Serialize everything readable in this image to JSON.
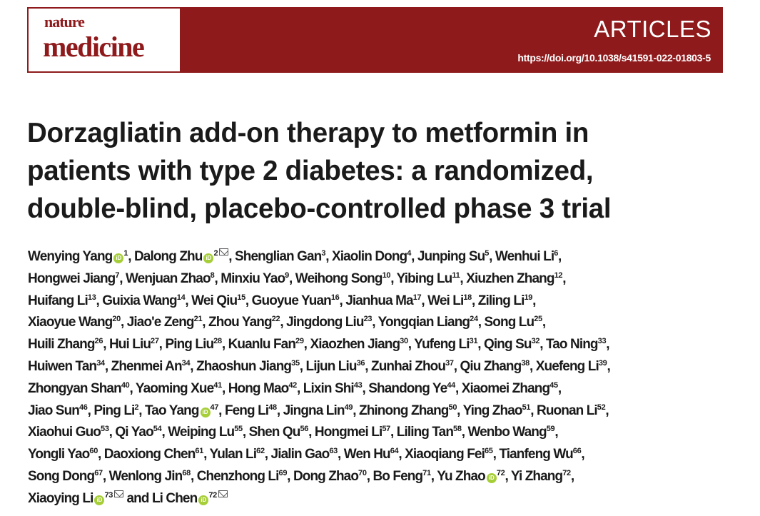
{
  "journal": {
    "logo_line1": "nature",
    "logo_line2": "medicine",
    "section": "ARTICLES",
    "doi": "https://doi.org/10.1038/s41591-022-01803-5",
    "brand_color": "#8f1a1c"
  },
  "title_lines": [
    "Dorzagliatin add-on therapy to metformin in",
    "patients with type 2 diabetes: a randomized,",
    "double-blind, placebo-controlled phase 3 trial"
  ],
  "author_lines": [
    [
      {
        "name": "Wenying Yang",
        "orcid": true,
        "sup": "1",
        "sep": ", "
      },
      {
        "name": "Dalong Zhu",
        "orcid": true,
        "sup": "2",
        "email": true,
        "sep": ", "
      },
      {
        "name": "Shenglian Gan",
        "sup": "3",
        "sep": ", "
      },
      {
        "name": "Xiaolin Dong",
        "sup": "4",
        "sep": ", "
      },
      {
        "name": "Junping Su",
        "sup": "5",
        "sep": ", "
      },
      {
        "name": "Wenhui Li",
        "sup": "6",
        "sep": ","
      }
    ],
    [
      {
        "name": "Hongwei Jiang",
        "sup": "7",
        "sep": ", "
      },
      {
        "name": "Wenjuan Zhao",
        "sup": "8",
        "sep": ", "
      },
      {
        "name": "Minxiu Yao",
        "sup": "9",
        "sep": ", "
      },
      {
        "name": "Weihong Song",
        "sup": "10",
        "sep": ", "
      },
      {
        "name": "Yibing Lu",
        "sup": "11",
        "sep": ", "
      },
      {
        "name": "Xiuzhen Zhang",
        "sup": "12",
        "sep": ","
      }
    ],
    [
      {
        "name": "Huifang Li",
        "sup": "13",
        "sep": ", "
      },
      {
        "name": "Guixia Wang",
        "sup": "14",
        "sep": ", "
      },
      {
        "name": "Wei Qiu",
        "sup": "15",
        "sep": ", "
      },
      {
        "name": "Guoyue Yuan",
        "sup": "16",
        "sep": ", "
      },
      {
        "name": "Jianhua Ma",
        "sup": "17",
        "sep": ", "
      },
      {
        "name": "Wei Li",
        "sup": "18",
        "sep": ", "
      },
      {
        "name": "Ziling Li",
        "sup": "19",
        "sep": ","
      }
    ],
    [
      {
        "name": "Xiaoyue Wang",
        "sup": "20",
        "sep": ", "
      },
      {
        "name": "Jiao'e Zeng",
        "sup": "21",
        "sep": ", "
      },
      {
        "name": "Zhou Yang",
        "sup": "22",
        "sep": ", "
      },
      {
        "name": "Jingdong Liu",
        "sup": "23",
        "sep": ", "
      },
      {
        "name": "Yongqian Liang",
        "sup": "24",
        "sep": ", "
      },
      {
        "name": "Song Lu",
        "sup": "25",
        "sep": ","
      }
    ],
    [
      {
        "name": "Huili Zhang",
        "sup": "26",
        "sep": ", "
      },
      {
        "name": "Hui Liu",
        "sup": "27",
        "sep": ", "
      },
      {
        "name": "Ping Liu",
        "sup": "28",
        "sep": ", "
      },
      {
        "name": "Kuanlu Fan",
        "sup": "29",
        "sep": ", "
      },
      {
        "name": "Xiaozhen Jiang",
        "sup": "30",
        "sep": ", "
      },
      {
        "name": "Yufeng Li",
        "sup": "31",
        "sep": ", "
      },
      {
        "name": "Qing Su",
        "sup": "32",
        "sep": ", "
      },
      {
        "name": "Tao Ning",
        "sup": "33",
        "sep": ","
      }
    ],
    [
      {
        "name": "Huiwen Tan",
        "sup": "34",
        "sep": ", "
      },
      {
        "name": "Zhenmei An",
        "sup": "34",
        "sep": ", "
      },
      {
        "name": "Zhaoshun Jiang",
        "sup": "35",
        "sep": ", "
      },
      {
        "name": "Lijun Liu",
        "sup": "36",
        "sep": ", "
      },
      {
        "name": "Zunhai Zhou",
        "sup": "37",
        "sep": ", "
      },
      {
        "name": "Qiu Zhang",
        "sup": "38",
        "sep": ", "
      },
      {
        "name": "Xuefeng Li",
        "sup": "39",
        "sep": ","
      }
    ],
    [
      {
        "name": "Zhongyan Shan",
        "sup": "40",
        "sep": ", "
      },
      {
        "name": "Yaoming Xue",
        "sup": "41",
        "sep": ", "
      },
      {
        "name": "Hong Mao",
        "sup": "42",
        "sep": ", "
      },
      {
        "name": "Lixin Shi",
        "sup": "43",
        "sep": ", "
      },
      {
        "name": "Shandong Ye",
        "sup": "44",
        "sep": ", "
      },
      {
        "name": "Xiaomei Zhang",
        "sup": "45",
        "sep": ","
      }
    ],
    [
      {
        "name": "Jiao Sun",
        "sup": "46",
        "sep": ", "
      },
      {
        "name": "Ping Li",
        "sup": "2",
        "sep": ", "
      },
      {
        "name": "Tao Yang",
        "orcid": true,
        "sup": "47",
        "sep": ", "
      },
      {
        "name": "Feng Li",
        "sup": "48",
        "sep": ", "
      },
      {
        "name": "Jingna Lin",
        "sup": "49",
        "sep": ", "
      },
      {
        "name": "Zhinong Zhang",
        "sup": "50",
        "sep": ", "
      },
      {
        "name": "Ying Zhao",
        "sup": "51",
        "sep": ", "
      },
      {
        "name": "Ruonan Li",
        "sup": "52",
        "sep": ","
      }
    ],
    [
      {
        "name": "Xiaohui Guo",
        "sup": "53",
        "sep": ", "
      },
      {
        "name": "Qi Yao",
        "sup": "54",
        "sep": ", "
      },
      {
        "name": "Weiping Lu",
        "sup": "55",
        "sep": ", "
      },
      {
        "name": "Shen Qu",
        "sup": "56",
        "sep": ", "
      },
      {
        "name": "Hongmei Li",
        "sup": "57",
        "sep": ", "
      },
      {
        "name": "Liling Tan",
        "sup": "58",
        "sep": ", "
      },
      {
        "name": "Wenbo Wang",
        "sup": "59",
        "sep": ","
      }
    ],
    [
      {
        "name": "Yongli Yao",
        "sup": "60",
        "sep": ", "
      },
      {
        "name": "Daoxiong Chen",
        "sup": "61",
        "sep": ", "
      },
      {
        "name": "Yulan Li",
        "sup": "62",
        "sep": ", "
      },
      {
        "name": "Jialin Gao",
        "sup": "63",
        "sep": ", "
      },
      {
        "name": "Wen Hu",
        "sup": "64",
        "sep": ", "
      },
      {
        "name": "Xiaoqiang Fei",
        "sup": "65",
        "sep": ", "
      },
      {
        "name": "Tianfeng Wu",
        "sup": "66",
        "sep": ","
      }
    ],
    [
      {
        "name": "Song Dong",
        "sup": "67",
        "sep": ", "
      },
      {
        "name": "Wenlong Jin",
        "sup": "68",
        "sep": ", "
      },
      {
        "name": "Chenzhong Li",
        "sup": "69",
        "sep": ", "
      },
      {
        "name": "Dong Zhao",
        "sup": "70",
        "sep": ", "
      },
      {
        "name": "Bo Feng",
        "sup": "71",
        "sep": ", "
      },
      {
        "name": "Yu Zhao",
        "orcid": true,
        "sup": "72",
        "sep": ", "
      },
      {
        "name": "Yi Zhang",
        "sup": "72",
        "sep": ","
      }
    ],
    [
      {
        "name": "Xiaoying Li",
        "orcid": true,
        "sup": "73",
        "email": true,
        "sep": " and "
      },
      {
        "name": "Li Chen",
        "orcid": true,
        "sup": "72",
        "email": true,
        "sep": ""
      }
    ]
  ],
  "icons": {
    "orcid": "orcid-icon",
    "email": "email-icon",
    "orcid_color": "#a6ce39"
  }
}
